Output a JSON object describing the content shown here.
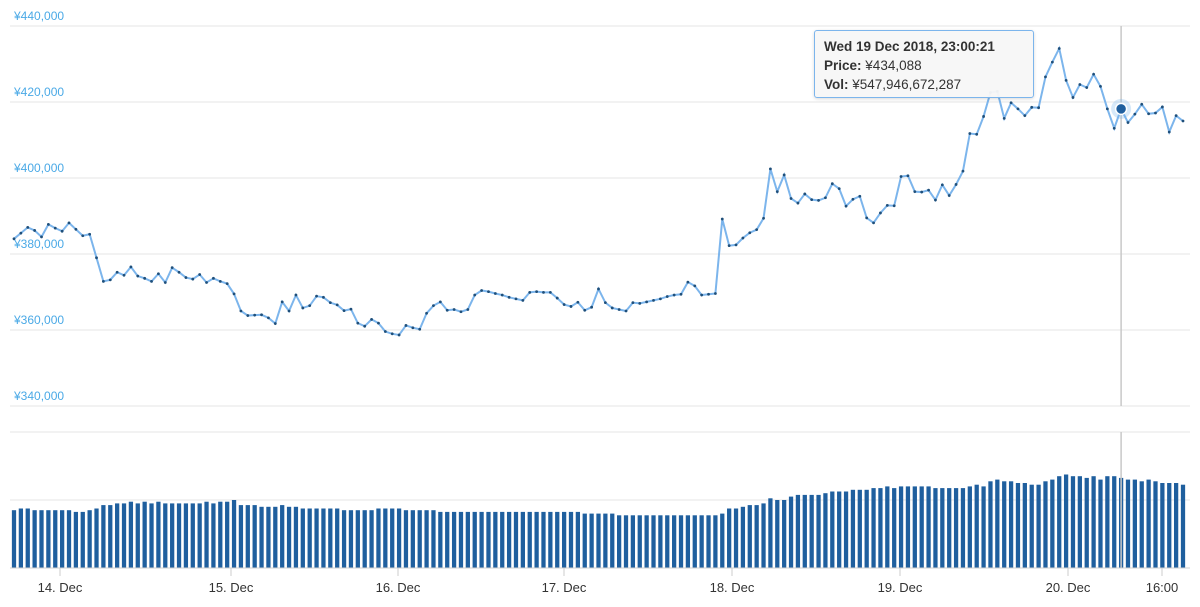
{
  "chart_data": [
    {
      "type": "line",
      "title": "",
      "xlabel": "",
      "ylabel": "",
      "ylim": [
        340000,
        440000
      ],
      "y_ticks": [
        "¥340,000",
        "¥360,000",
        "¥380,000",
        "¥400,000",
        "¥420,000",
        "¥440,000"
      ],
      "x_ticks": [
        "14. Dec",
        "15. Dec",
        "16. Dec",
        "17. Dec",
        "18. Dec",
        "19. Dec",
        "20. Dec",
        "16:00"
      ],
      "grid": true,
      "color": "#7cb5ec",
      "marker_color": "#1f4f7a",
      "series": [
        {
          "values": [
            384000,
            385500,
            387000,
            386200,
            384500,
            387800,
            386800,
            386000,
            388200,
            386500,
            384800,
            385200,
            379000,
            372800,
            373200,
            375200,
            374400,
            376600,
            374200,
            373600,
            372800,
            374800,
            372500,
            376400,
            375200,
            373800,
            373400,
            374600,
            372500,
            373600,
            372800,
            372200,
            369500,
            365000,
            363800,
            363900,
            364000,
            363200,
            361700,
            367400,
            365000,
            369200,
            365800,
            366400,
            368900,
            368600,
            367200,
            366600,
            365100,
            365500,
            361800,
            361000,
            362800,
            361800,
            359600,
            359000,
            358700,
            361200,
            360600,
            360200,
            364400,
            366400,
            367400,
            365200,
            365400,
            364800,
            365400,
            369200,
            370400,
            370100,
            369600,
            369200,
            368600,
            368200,
            367800,
            369900,
            370100,
            369900,
            369900,
            368400,
            366700,
            366200,
            367300,
            365200,
            366000,
            370800,
            367200,
            365800,
            365400,
            365000,
            367200,
            367000,
            367400,
            367800,
            368200,
            368800,
            369200,
            369400,
            372600,
            371600,
            369200,
            369400,
            369600,
            389200,
            382200,
            382400,
            384200,
            385600,
            386400,
            389400,
            402400,
            396400,
            400800,
            394600,
            393400,
            395800,
            394300,
            394100,
            394800,
            398500,
            397200,
            392600,
            394400,
            395200,
            389500,
            388200,
            390800,
            392800,
            392700,
            400400,
            400600,
            396400,
            396300,
            396800,
            394200,
            398200,
            395400,
            398300,
            401800,
            411700,
            411500,
            416200,
            422500,
            422800,
            415700,
            419800,
            418200,
            416400,
            418600,
            418500,
            426600,
            430500,
            434088,
            425700,
            421200,
            424600,
            423800,
            427300,
            424100,
            418200,
            413100,
            418200,
            414600,
            416800,
            419400,
            416900,
            417100,
            418700,
            412100,
            416400,
            415000
          ]
        }
      ]
    },
    {
      "type": "bar",
      "title": "",
      "color": "#1f5f9e",
      "ylim": [
        0,
        80
      ],
      "series": [
        {
          "values": [
            34,
            35,
            35,
            34,
            34,
            34,
            34,
            34,
            34,
            33,
            33,
            34,
            35,
            37,
            37,
            38,
            38,
            39,
            38,
            39,
            38,
            39,
            38,
            38,
            38,
            38,
            38,
            38,
            39,
            38,
            39,
            39,
            40,
            37,
            37,
            37,
            36,
            36,
            36,
            37,
            36,
            36,
            35,
            35,
            35,
            35,
            35,
            35,
            34,
            34,
            34,
            34,
            34,
            35,
            35,
            35,
            35,
            34,
            34,
            34,
            34,
            34,
            33,
            33,
            33,
            33,
            33,
            33,
            33,
            33,
            33,
            33,
            33,
            33,
            33,
            33,
            33,
            33,
            33,
            33,
            33,
            33,
            33,
            32,
            32,
            32,
            32,
            32,
            31,
            31,
            31,
            31,
            31,
            31,
            31,
            31,
            31,
            31,
            31,
            31,
            31,
            31,
            31,
            32,
            35,
            35,
            36,
            37,
            37,
            38,
            41,
            40,
            40,
            42,
            43,
            43,
            43,
            43,
            44,
            45,
            45,
            45,
            46,
            46,
            46,
            47,
            47,
            48,
            47,
            48,
            48,
            48,
            48,
            48,
            47,
            47,
            47,
            47,
            47,
            48,
            49,
            48,
            51,
            52,
            51,
            51,
            50,
            50,
            49,
            49,
            51,
            52,
            54,
            55,
            54,
            54,
            53,
            54,
            52,
            54,
            54,
            53,
            52,
            52,
            51,
            52,
            51,
            50,
            50,
            50,
            49
          ]
        }
      ]
    }
  ],
  "tooltip": {
    "date": "Wed 19 Dec 2018, 23:00:21",
    "price_label": "Price:",
    "price_value": "¥434,088",
    "vol_label": "Vol:",
    "vol_value": "¥547,946,672,287"
  },
  "highlight_index": 161
}
